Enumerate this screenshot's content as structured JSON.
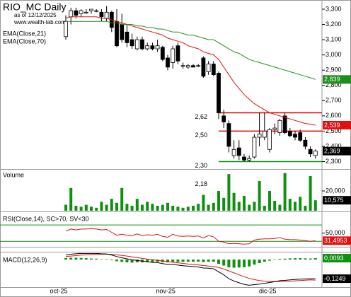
{
  "chart_data": [
    {
      "type": "candlestick",
      "title": "RIO_MC Daily",
      "subtitle": "as of 12/12/2025",
      "source": "www.wealth-lab.com",
      "categories": [
        "oct-25",
        null,
        null,
        null,
        null,
        null,
        null,
        null,
        null,
        null,
        null,
        null,
        null,
        null,
        null,
        null,
        null,
        null,
        null,
        null,
        null,
        "nov-25",
        null,
        null,
        null,
        null,
        null,
        null,
        null,
        null,
        null,
        null,
        null,
        null,
        null,
        null,
        null,
        null,
        null,
        null,
        null,
        "dic-25",
        null,
        null,
        null,
        null,
        null,
        null,
        null,
        null
      ],
      "ohlc": {
        "up_color": "#ffffff",
        "down_color": "#000000",
        "last_label": "2,369",
        "open": [
          3.12,
          3.25,
          3.29,
          3.27,
          3.28,
          3.29,
          3.29,
          3.28,
          3.24,
          3.28,
          3.22,
          3.2,
          3.15,
          3.1,
          3.04,
          3.1,
          3.04,
          3.06,
          3.04,
          3.05,
          2.98,
          2.95,
          3.06,
          2.93,
          2.92,
          2.93,
          2.93,
          2.98,
          2.89,
          2.94,
          2.88,
          2.6,
          2.55,
          2.34,
          2.39,
          2.33,
          2.31,
          2.33,
          2.46,
          2.46,
          2.38,
          2.51,
          2.49,
          2.6,
          2.5,
          2.48,
          2.49,
          2.44,
          2.38,
          2.34
        ],
        "high": [
          3.26,
          3.31,
          3.31,
          3.3,
          3.3,
          3.3,
          3.3,
          3.3,
          3.32,
          3.29,
          3.3,
          3.27,
          3.2,
          3.14,
          3.12,
          3.12,
          3.08,
          3.08,
          3.1,
          3.06,
          3.0,
          3.06,
          3.08,
          2.95,
          2.94,
          2.94,
          2.94,
          2.99,
          2.96,
          2.96,
          2.89,
          2.64,
          2.57,
          2.44,
          2.44,
          2.35,
          2.34,
          2.48,
          2.62,
          2.62,
          2.52,
          2.55,
          2.58,
          2.62,
          2.52,
          2.5,
          2.51,
          2.46,
          2.4,
          2.38
        ],
        "low": [
          3.1,
          3.2,
          3.24,
          3.25,
          3.27,
          3.27,
          3.28,
          3.22,
          3.22,
          3.15,
          3.05,
          3.08,
          3.05,
          3.04,
          3.03,
          3.03,
          3.03,
          3.03,
          3.02,
          2.96,
          2.9,
          2.91,
          2.94,
          2.91,
          2.91,
          2.92,
          2.92,
          2.85,
          2.87,
          2.86,
          2.58,
          2.52,
          2.36,
          2.32,
          2.31,
          2.3,
          2.3,
          2.32,
          2.4,
          2.44,
          2.36,
          2.48,
          2.47,
          2.48,
          2.46,
          2.44,
          2.43,
          2.38,
          2.33,
          2.32
        ],
        "close": [
          3.22,
          3.29,
          3.26,
          3.29,
          3.28,
          3.3,
          3.29,
          3.25,
          3.28,
          3.18,
          3.06,
          3.1,
          3.08,
          3.06,
          3.1,
          3.04,
          3.06,
          3.04,
          3.06,
          2.97,
          2.92,
          3.04,
          2.96,
          2.93,
          2.93,
          2.92,
          2.93,
          2.86,
          2.94,
          2.87,
          2.62,
          2.56,
          2.4,
          2.38,
          2.34,
          2.31,
          2.32,
          2.46,
          2.48,
          2.5,
          2.51,
          2.52,
          2.57,
          2.49,
          2.47,
          2.46,
          2.44,
          2.4,
          2.35,
          2.369
        ]
      },
      "series": [
        {
          "name": "EMA(Close,21)",
          "color": "#e01010",
          "last_label": "2,539",
          "values": [
            3.24,
            3.25,
            3.25,
            3.25,
            3.25,
            3.25,
            3.25,
            3.24,
            3.24,
            3.23,
            3.22,
            3.21,
            3.2,
            3.19,
            3.18,
            3.17,
            3.16,
            3.15,
            3.14,
            3.13,
            3.11,
            3.1,
            3.09,
            3.08,
            3.06,
            3.05,
            3.04,
            3.02,
            3.01,
            3.0,
            2.97,
            2.92,
            2.87,
            2.82,
            2.78,
            2.74,
            2.71,
            2.68,
            2.66,
            2.64,
            2.62,
            2.61,
            2.6,
            2.59,
            2.58,
            2.57,
            2.56,
            2.55,
            2.545,
            2.539
          ]
        },
        {
          "name": "EMA(Close,70)",
          "color": "#1a8f1a",
          "last_label": "2,839",
          "values": [
            3.22,
            3.22,
            3.22,
            3.22,
            3.22,
            3.22,
            3.22,
            3.22,
            3.22,
            3.21,
            3.21,
            3.2,
            3.2,
            3.2,
            3.19,
            3.19,
            3.18,
            3.18,
            3.17,
            3.17,
            3.16,
            3.15,
            3.15,
            3.14,
            3.13,
            3.13,
            3.12,
            3.11,
            3.1,
            3.1,
            3.08,
            3.06,
            3.04,
            3.02,
            3.01,
            2.99,
            2.97,
            2.96,
            2.95,
            2.94,
            2.93,
            2.92,
            2.91,
            2.9,
            2.89,
            2.88,
            2.87,
            2.86,
            2.85,
            2.839
          ]
        }
      ],
      "levels": [
        {
          "value": 2.62,
          "label": "2,62",
          "color": "#e00000",
          "start": 30
        },
        {
          "value": 2.5,
          "label": "2,50",
          "color": "#e00000",
          "start": 30
        },
        {
          "value": 2.3,
          "label": "2,30",
          "color": "#009900",
          "start": 30
        },
        {
          "value": 2.18,
          "label": "2,18",
          "color": "#e00000",
          "start": 30
        }
      ],
      "ylim": [
        2.256,
        3.351
      ],
      "yticks": [
        {
          "value": 3.3,
          "label": "3,300"
        },
        {
          "value": 3.2,
          "label": "3,200"
        },
        {
          "value": 3.1,
          "label": "3,100"
        },
        {
          "value": 3.0,
          "label": "3,000"
        },
        {
          "value": 2.9,
          "label": "2,900"
        },
        {
          "value": 2.8,
          "label": "2,800"
        },
        {
          "value": 2.7,
          "label": "2,700"
        },
        {
          "value": 2.6,
          "label": "2,600"
        },
        {
          "value": 2.5,
          "label": "2,500"
        },
        {
          "value": 2.4,
          "label": "2,400"
        },
        {
          "value": 2.3,
          "label": "2,300"
        }
      ]
    },
    {
      "type": "bar",
      "ylim": [
        0,
        40.7
      ],
      "yticks": [
        {
          "value": 20,
          "label": "20,000"
        }
      ],
      "series": [
        {
          "name": "Volume",
          "color": "#109010",
          "last_label": "10,575",
          "values": [
            6,
            23,
            5,
            4,
            6,
            4,
            3,
            9,
            6,
            12,
            8,
            23,
            7,
            5,
            12,
            6,
            9,
            7,
            5,
            6,
            8,
            5,
            4,
            3,
            4,
            5,
            7,
            16,
            6,
            8,
            20,
            13,
            37,
            18,
            9,
            15,
            6,
            9,
            30,
            5,
            20,
            10,
            6,
            38,
            12,
            9,
            14,
            5,
            35,
            10.575
          ]
        }
      ]
    },
    {
      "type": "line",
      "title": "RSI(Close,14), SC>70, SV<30",
      "ylim": [
        20,
        98
      ],
      "yticks": [
        {
          "value": 50,
          "label": "50,000"
        }
      ],
      "bands": [
        {
          "value": 70,
          "color": "#109010"
        },
        {
          "value": 30,
          "color": "#109010"
        }
      ],
      "series": [
        {
          "color": "#e01010",
          "last_label": "31,4953",
          "values": [
            55,
            60,
            58,
            60,
            60,
            61,
            60,
            58,
            59,
            52,
            45,
            47,
            45,
            44,
            48,
            44,
            46,
            45,
            47,
            42,
            40,
            47,
            43,
            42,
            43,
            42,
            43,
            38,
            44,
            41,
            30,
            28,
            24,
            25,
            24,
            23,
            24,
            33,
            35,
            36,
            36,
            37,
            39,
            35,
            34,
            34,
            33,
            32,
            30,
            31.4953
          ]
        }
      ]
    },
    {
      "type": "line",
      "title": "MACD(12,26,9)",
      "ylim": [
        -0.18,
        0.042
      ],
      "series": [
        {
          "style": "bar",
          "color": "#109010",
          "last_label": "0,0093",
          "values": [
            0.01,
            0.012,
            0.012,
            0.011,
            0.009,
            0.007,
            0.006,
            0.003,
            0.002,
            -0.004,
            -0.011,
            -0.015,
            -0.018,
            -0.02,
            -0.018,
            -0.018,
            -0.017,
            -0.017,
            -0.015,
            -0.017,
            -0.018,
            -0.015,
            -0.015,
            -0.015,
            -0.014,
            -0.014,
            -0.013,
            -0.016,
            -0.014,
            -0.014,
            -0.028,
            -0.039,
            -0.051,
            -0.053,
            -0.052,
            -0.05,
            -0.045,
            -0.033,
            -0.023,
            -0.014,
            -0.007,
            -0.001,
            0.005,
            0.006,
            0.008,
            0.009,
            0.009,
            0.008,
            0.007,
            0.0093
          ]
        },
        {
          "color": "#e01010",
          "values": [
            0.02,
            0.023,
            0.026,
            0.029,
            0.031,
            0.033,
            0.034,
            0.035,
            0.035,
            0.034,
            0.031,
            0.027,
            0.023,
            0.018,
            0.013,
            0.008,
            0.003,
            -0.001,
            -0.005,
            -0.009,
            -0.014,
            -0.017,
            -0.021,
            -0.025,
            -0.029,
            -0.032,
            -0.035,
            -0.039,
            -0.042,
            -0.046,
            -0.052,
            -0.061,
            -0.074,
            -0.087,
            -0.1,
            -0.112,
            -0.123,
            -0.131,
            -0.137,
            -0.141,
            -0.143,
            -0.144,
            -0.143,
            -0.142,
            -0.141,
            -0.139,
            -0.137,
            -0.135,
            -0.133,
            -0.1342
          ]
        },
        {
          "color": "#000000",
          "last_label": "-0,1249",
          "values": [
            0.03,
            0.035,
            0.038,
            0.04,
            0.04,
            0.04,
            0.04,
            0.038,
            0.037,
            0.03,
            0.02,
            0.012,
            0.005,
            -0.002,
            -0.005,
            -0.01,
            -0.014,
            -0.018,
            -0.02,
            -0.026,
            -0.032,
            -0.032,
            -0.036,
            -0.04,
            -0.043,
            -0.046,
            -0.048,
            -0.055,
            -0.056,
            -0.06,
            -0.08,
            -0.1,
            -0.125,
            -0.14,
            -0.152,
            -0.162,
            -0.168,
            -0.164,
            -0.16,
            -0.155,
            -0.15,
            -0.145,
            -0.138,
            -0.136,
            -0.133,
            -0.13,
            -0.128,
            -0.127,
            -0.126,
            -0.1249
          ]
        }
      ]
    }
  ]
}
